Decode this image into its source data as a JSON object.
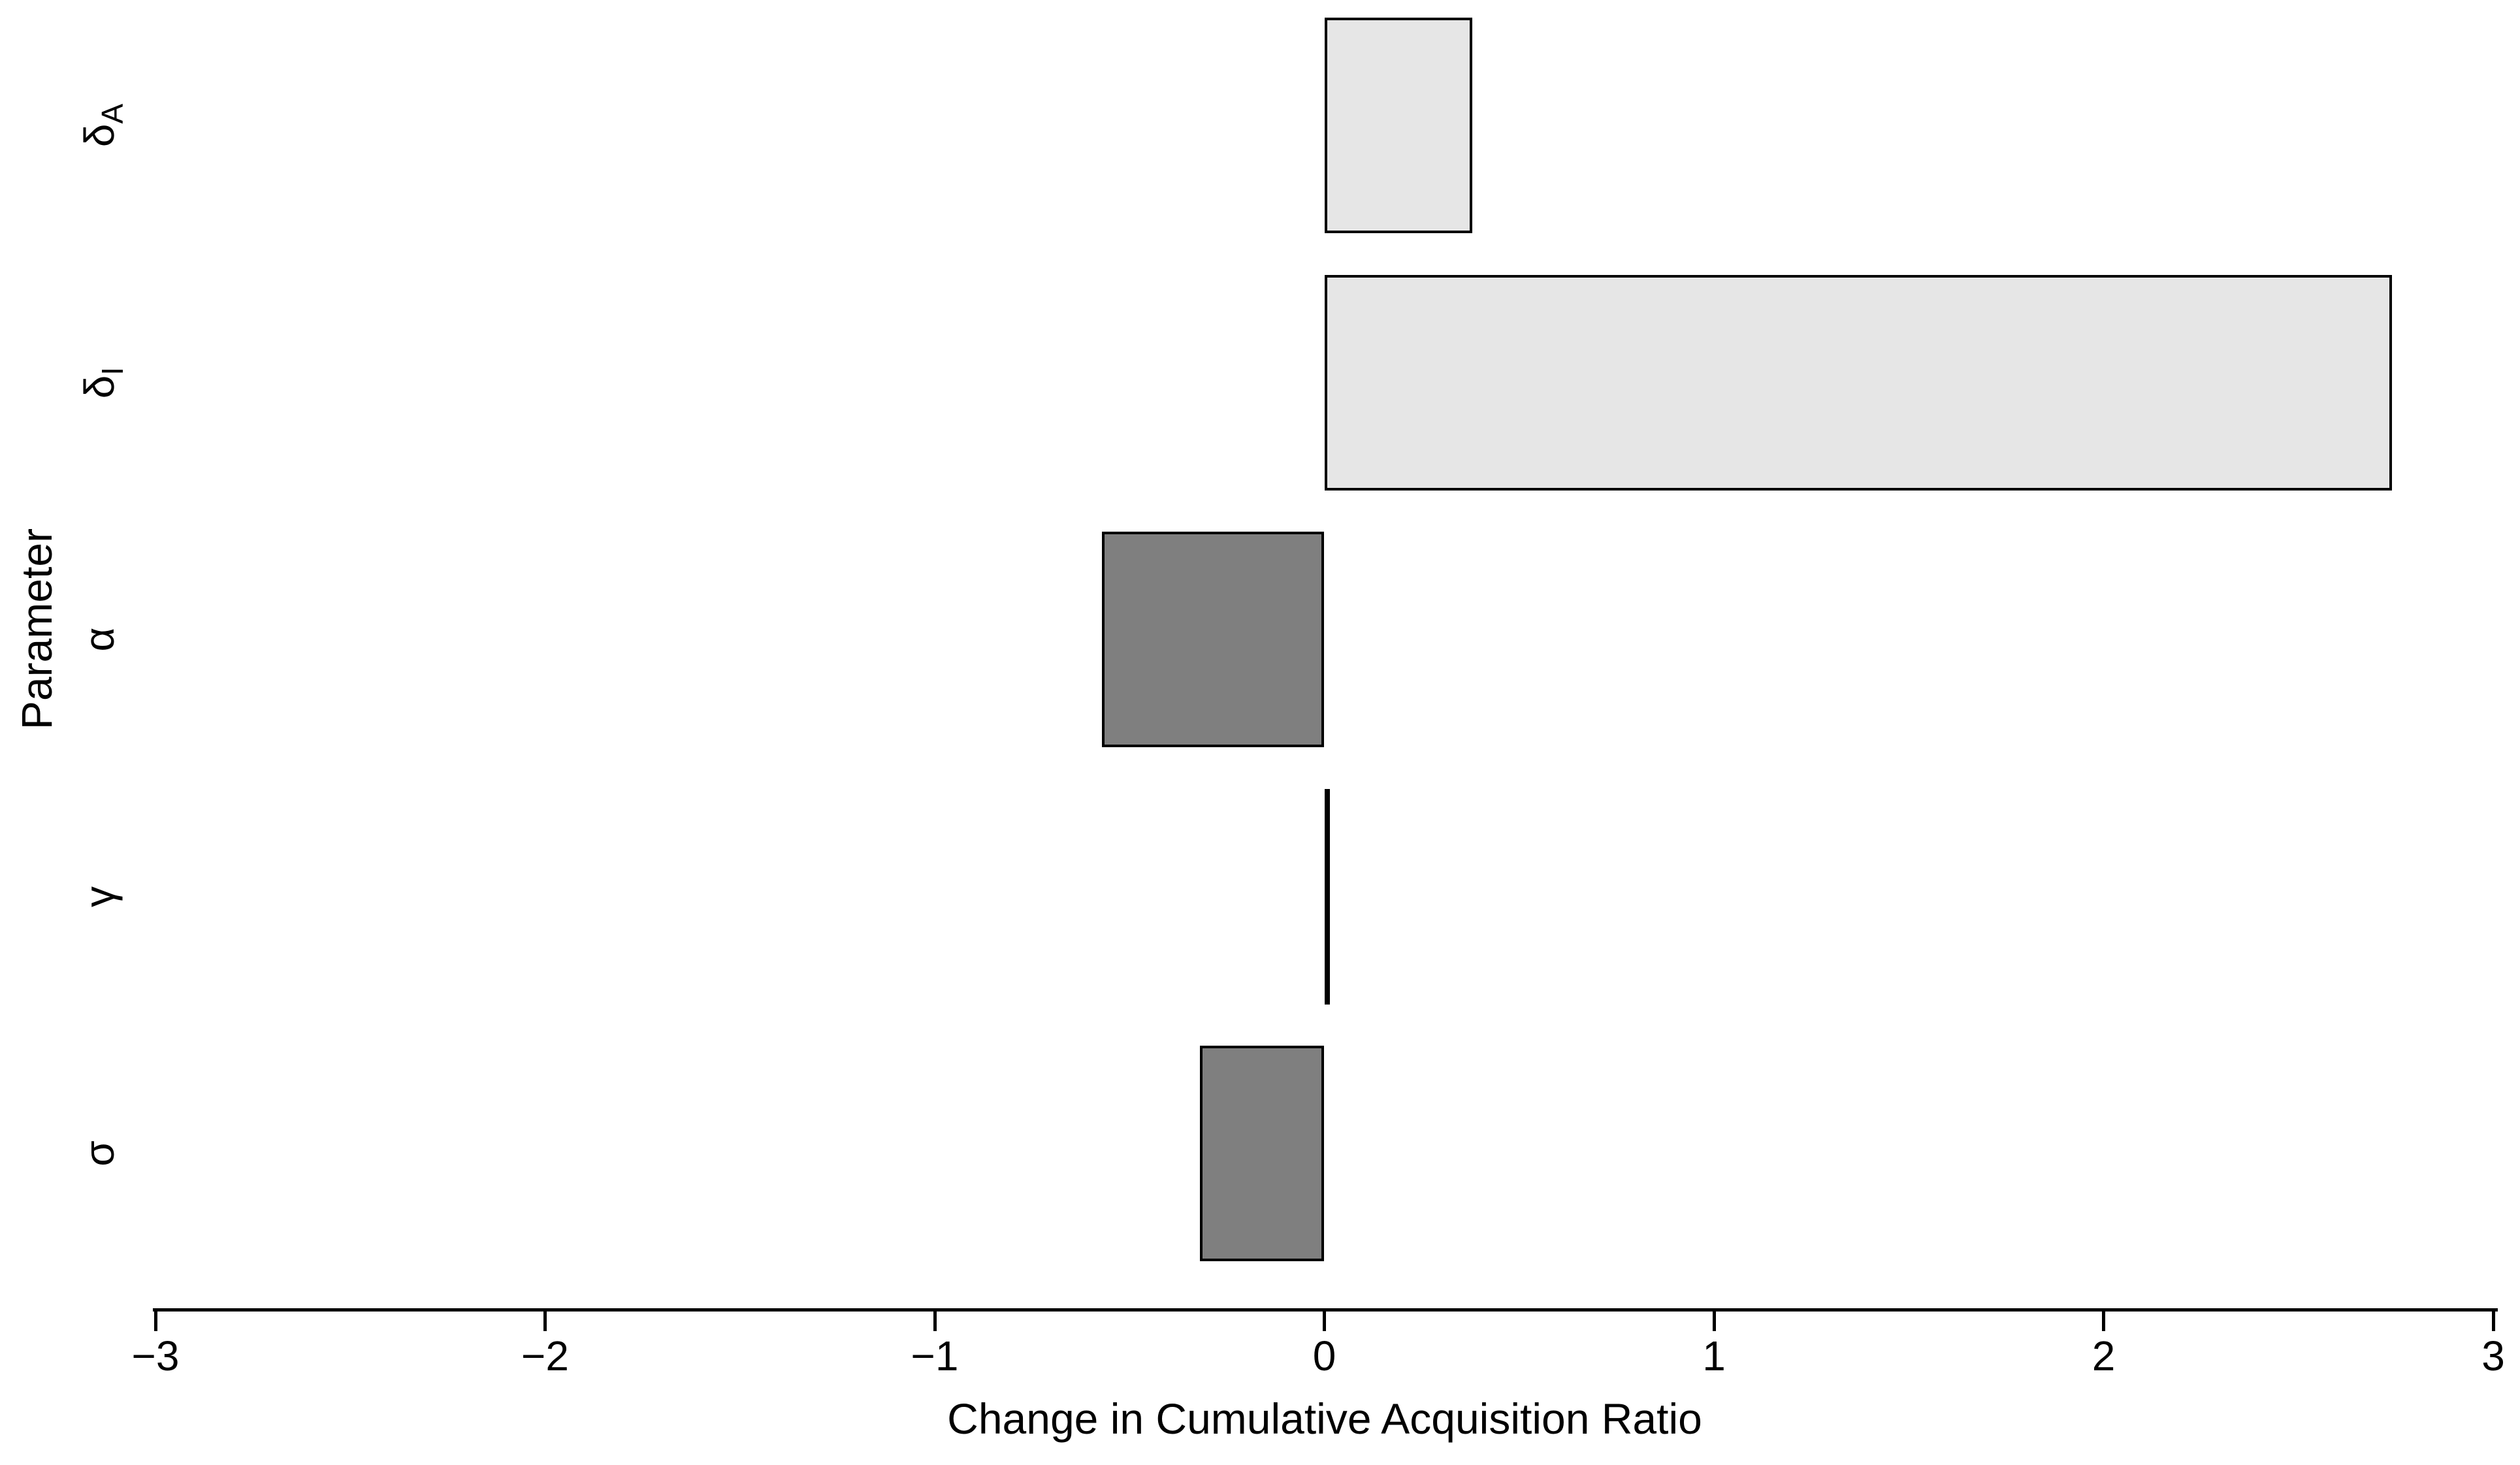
{
  "chart_data": {
    "type": "bar",
    "orientation": "horizontal",
    "title": "",
    "xlabel": "Change in Cumulative Acquisition Ratio",
    "ylabel": "Parameter",
    "xlim": [
      -3,
      3
    ],
    "grid": false,
    "legend": null,
    "x_ticks": [
      -3,
      -2,
      -1,
      0,
      1,
      2,
      3
    ],
    "x_tick_labels": [
      "−3",
      "−2",
      "−1",
      "0",
      "1",
      "2",
      "3"
    ],
    "categories": [
      {
        "id": "delta-A",
        "symbol": "δ",
        "subscript": "A"
      },
      {
        "id": "delta-I",
        "symbol": "δ",
        "subscript": "I"
      },
      {
        "id": "alpha",
        "symbol": "α",
        "subscript": ""
      },
      {
        "id": "gamma",
        "symbol": "γ",
        "subscript": ""
      },
      {
        "id": "sigma",
        "symbol": "σ",
        "subscript": ""
      }
    ],
    "values": [
      0.38,
      2.74,
      -0.57,
      0.01,
      -0.32
    ],
    "bar_fill_colors": [
      "#e6e6e6",
      "#e6e6e6",
      "#7f7f7f",
      "#e6e6e6",
      "#7f7f7f"
    ],
    "bar_border_color": "#000000",
    "axis_color": "#000000",
    "background_color": "#ffffff"
  }
}
